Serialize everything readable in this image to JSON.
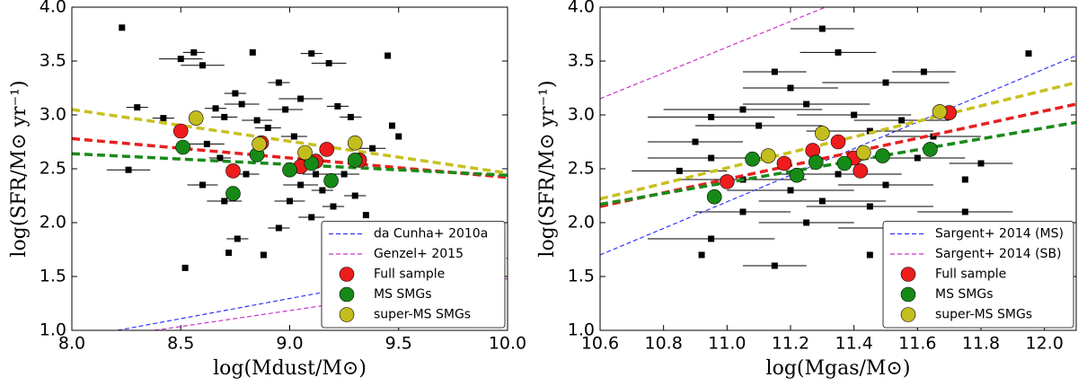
{
  "chart_data": [
    {
      "type": "scatter",
      "xlabel": "log(Mdust/M⊙)",
      "ylabel": "log(SFR/M⊙ yr⁻¹)",
      "xlim": [
        8.0,
        10.0
      ],
      "ylim": [
        1.0,
        4.0
      ],
      "xticks": [
        {
          "value": 8.0,
          "label": "8.0"
        },
        {
          "value": 8.5,
          "label": "8.5"
        },
        {
          "value": 9.0,
          "label": "9.0"
        },
        {
          "value": 9.5,
          "label": "9.5"
        },
        {
          "value": 10.0,
          "label": "10.0"
        }
      ],
      "yticks": [
        {
          "value": 1.0,
          "label": "1.0"
        },
        1.5,
        {
          "value": 2.0,
          "label": "2.0"
        },
        2.5,
        {
          "value": 3.0,
          "label": "3.0"
        },
        3.5,
        {
          "value": 4.0,
          "label": "4.0"
        }
      ],
      "legend": "lower right",
      "reference_lines": [
        {
          "name": "da Cunha+ 2010a",
          "color": "#3333ff",
          "x": [
            8.21,
            10.0
          ],
          "y": [
            1.0,
            1.67
          ]
        },
        {
          "name": "Genzel+ 2015",
          "color": "#cc33cc",
          "x": [
            8.38,
            10.0
          ],
          "y": [
            1.0,
            1.48
          ]
        }
      ],
      "fits": [
        {
          "color": "#e62020",
          "x": [
            8.0,
            10.0
          ],
          "y": [
            2.78,
            2.42
          ]
        },
        {
          "color": "#1a8a1a",
          "x": [
            8.0,
            10.0
          ],
          "y": [
            2.64,
            2.44
          ]
        },
        {
          "color": "#c8c020",
          "x": [
            8.0,
            10.0
          ],
          "y": [
            3.05,
            2.46
          ]
        }
      ],
      "points": {
        "color": "#000000",
        "x": [
          8.23,
          8.3,
          8.26,
          8.42,
          8.5,
          8.56,
          8.6,
          8.62,
          8.66,
          8.7,
          8.75,
          8.78,
          8.83,
          8.85,
          8.9,
          8.95,
          8.98,
          9.02,
          9.05,
          9.1,
          9.12,
          9.18,
          9.22,
          9.28,
          9.38,
          9.45,
          9.5,
          9.47,
          8.6,
          8.7,
          8.76,
          8.72,
          8.88,
          8.52,
          9.0,
          9.1,
          9.2,
          9.35,
          8.95,
          9.05,
          8.8,
          9.15,
          9.25,
          9.3,
          8.68
        ],
        "y": [
          3.81,
          3.07,
          2.49,
          2.97,
          3.52,
          3.58,
          3.46,
          2.73,
          3.06,
          2.98,
          3.2,
          3.1,
          3.58,
          2.95,
          2.88,
          3.3,
          3.05,
          2.8,
          3.15,
          3.57,
          2.45,
          3.48,
          3.08,
          2.98,
          2.69,
          3.55,
          2.8,
          2.9,
          2.35,
          2.2,
          1.85,
          1.72,
          1.7,
          1.58,
          2.2,
          2.05,
          2.15,
          2.07,
          1.95,
          2.35,
          2.45,
          2.3,
          2.45,
          2.25,
          2.6
        ],
        "xerr": [
          0,
          0.05,
          0.1,
          0.05,
          0.1,
          0.05,
          0.1,
          0.08,
          0.05,
          0.06,
          0.05,
          0.08,
          0,
          0.07,
          0.06,
          0.05,
          0.08,
          0.06,
          0.1,
          0.05,
          0.06,
          0.08,
          0.05,
          0.05,
          0.06,
          0,
          0,
          0,
          0.07,
          0.08,
          0.05,
          0,
          0,
          0,
          0.07,
          0.06,
          0.05,
          0,
          0.05,
          0.08,
          0.06,
          0.05,
          0.07,
          0.05,
          0.05
        ]
      },
      "series": [
        {
          "name": "Full sample",
          "color": "#ee1c1c",
          "x": [
            8.5,
            8.74,
            8.87,
            9.05,
            9.12,
            9.17,
            9.32
          ],
          "y": [
            2.85,
            2.48,
            2.74,
            2.52,
            2.57,
            2.68,
            2.58
          ]
        },
        {
          "name": "MS SMGs",
          "color": "#168a16",
          "x": [
            8.51,
            8.74,
            8.85,
            9.0,
            9.1,
            9.19,
            9.3
          ],
          "y": [
            2.7,
            2.27,
            2.63,
            2.49,
            2.55,
            2.39,
            2.58
          ]
        },
        {
          "name": "super-MS SMGs",
          "color": "#c4bd1e",
          "x": [
            8.57,
            8.86,
            9.07,
            9.3
          ],
          "y": [
            2.97,
            2.73,
            2.65,
            2.74
          ]
        }
      ]
    },
    {
      "type": "scatter",
      "xlabel": "log(Mgas/M⊙)",
      "ylabel": "log(SFR/M⊙ yr⁻¹)",
      "xlim": [
        10.6,
        12.1
      ],
      "ylim": [
        1.0,
        4.0
      ],
      "xticks": [
        10.6,
        10.8,
        {
          "value": 11.0,
          "label": "11.0"
        },
        11.2,
        11.4,
        11.6,
        11.8,
        {
          "value": 12.0,
          "label": "12.0"
        }
      ],
      "yticks": [
        {
          "value": 1.0,
          "label": "1.0"
        },
        1.5,
        {
          "value": 2.0,
          "label": "2.0"
        },
        2.5,
        {
          "value": 3.0,
          "label": "3.0"
        },
        3.5,
        {
          "value": 4.0,
          "label": "4.0"
        }
      ],
      "legend": "lower right",
      "reference_lines": [
        {
          "name": "Sargent+ 2014 (MS)",
          "color": "#3333ff",
          "x": [
            10.6,
            12.1
          ],
          "y": [
            1.7,
            3.55
          ]
        },
        {
          "name": "Sargent+ 2014 (SB)",
          "color": "#cc33cc",
          "x": [
            10.6,
            11.31
          ],
          "y": [
            3.15,
            4.0
          ]
        }
      ],
      "fits": [
        {
          "color": "#e62020",
          "x": [
            10.6,
            12.1
          ],
          "y": [
            2.15,
            3.1
          ]
        },
        {
          "color": "#1a8a1a",
          "x": [
            10.6,
            12.1
          ],
          "y": [
            2.17,
            2.93
          ]
        },
        {
          "color": "#c8c020",
          "x": [
            10.6,
            12.1
          ],
          "y": [
            2.22,
            3.3
          ]
        }
      ],
      "points": {
        "color": "#000000",
        "x": [
          11.3,
          11.15,
          11.2,
          11.35,
          11.5,
          11.95,
          11.62,
          10.9,
          10.95,
          11.05,
          11.1,
          11.25,
          11.4,
          11.55,
          11.45,
          10.85,
          11.2,
          11.3,
          11.45,
          11.5,
          11.05,
          10.95,
          10.92,
          11.15,
          11.45,
          11.75,
          11.75,
          11.8,
          10.95,
          11.6,
          11.35,
          11.25,
          11.55,
          11.05,
          11.65
        ],
        "y": [
          3.8,
          3.4,
          3.25,
          3.58,
          3.3,
          3.57,
          3.4,
          2.75,
          2.98,
          3.05,
          2.9,
          3.1,
          3.0,
          2.95,
          2.85,
          2.48,
          2.3,
          2.2,
          2.15,
          2.35,
          2.1,
          1.85,
          1.7,
          1.6,
          1.7,
          2.1,
          2.4,
          2.55,
          2.6,
          2.6,
          2.45,
          2.0,
          1.95,
          2.4,
          2.8
        ],
        "xerr": [
          0.1,
          0.1,
          0.15,
          0.12,
          0.2,
          0,
          0.1,
          0.15,
          0.2,
          0.25,
          0.2,
          0.2,
          0.18,
          0.15,
          0.2,
          0.15,
          0.2,
          0.2,
          0.2,
          0.15,
          0.15,
          0.2,
          0,
          0.1,
          0,
          0.15,
          0,
          0.1,
          0.2,
          0.15,
          0.2,
          0.15,
          0.2,
          0.2,
          0.15
        ]
      },
      "series": [
        {
          "name": "Full sample",
          "color": "#ee1c1c",
          "x": [
            11.0,
            11.18,
            11.27,
            11.35,
            11.4,
            11.42,
            11.7
          ],
          "y": [
            2.38,
            2.55,
            2.67,
            2.75,
            2.6,
            2.48,
            3.02
          ]
        },
        {
          "name": "MS SMGs",
          "color": "#168a16",
          "x": [
            10.96,
            11.08,
            11.22,
            11.28,
            11.37,
            11.49,
            11.64
          ],
          "y": [
            2.24,
            2.59,
            2.44,
            2.56,
            2.55,
            2.62,
            2.68
          ]
        },
        {
          "name": "super-MS SMGs",
          "color": "#c4bd1e",
          "x": [
            11.13,
            11.3,
            11.43,
            11.67
          ],
          "y": [
            2.62,
            2.83,
            2.65,
            3.03
          ]
        }
      ]
    }
  ]
}
